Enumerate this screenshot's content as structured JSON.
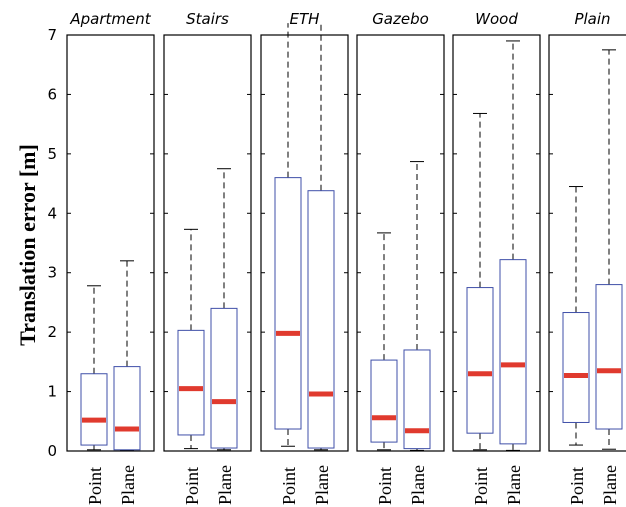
{
  "chart_data": {
    "type": "box",
    "ylabel": "Translation error [m]",
    "ylim": [
      0,
      7
    ],
    "yticks": [
      0,
      1,
      2,
      3,
      4,
      5,
      6,
      7
    ],
    "categories": [
      "Point",
      "Plane"
    ],
    "colors": {
      "box": "#3f4fa8",
      "median": "#e03a2e",
      "whisker": "#000000",
      "frame": "#000000"
    },
    "panels": [
      {
        "title": "Apartment",
        "boxes": [
          {
            "label": "Point",
            "whisker_low": 0.02,
            "q1": 0.1,
            "median": 0.52,
            "q3": 1.3,
            "whisker_high": 2.78
          },
          {
            "label": "Plane",
            "whisker_low": 0.01,
            "q1": 0.02,
            "median": 0.37,
            "q3": 1.42,
            "whisker_high": 3.2
          }
        ]
      },
      {
        "title": "Stairs",
        "boxes": [
          {
            "label": "Point",
            "whisker_low": 0.04,
            "q1": 0.27,
            "median": 1.05,
            "q3": 2.03,
            "whisker_high": 3.73
          },
          {
            "label": "Plane",
            "whisker_low": 0.02,
            "q1": 0.05,
            "median": 0.83,
            "q3": 2.4,
            "whisker_high": 4.75
          }
        ]
      },
      {
        "title": "ETH",
        "boxes": [
          {
            "label": "Point",
            "whisker_low": 0.08,
            "q1": 0.37,
            "median": 1.98,
            "q3": 4.6,
            "whisker_high": 7.2
          },
          {
            "label": "Plane",
            "whisker_low": 0.02,
            "q1": 0.05,
            "median": 0.96,
            "q3": 4.38,
            "whisker_high": 7.2
          }
        ]
      },
      {
        "title": "Gazebo",
        "boxes": [
          {
            "label": "Point",
            "whisker_low": 0.02,
            "q1": 0.15,
            "median": 0.56,
            "q3": 1.53,
            "whisker_high": 3.67
          },
          {
            "label": "Plane",
            "whisker_low": 0.01,
            "q1": 0.04,
            "median": 0.34,
            "q3": 1.7,
            "whisker_high": 4.87
          }
        ]
      },
      {
        "title": "Wood",
        "boxes": [
          {
            "label": "Point",
            "whisker_low": 0.02,
            "q1": 0.3,
            "median": 1.3,
            "q3": 2.75,
            "whisker_high": 5.68
          },
          {
            "label": "Plane",
            "whisker_low": 0.01,
            "q1": 0.12,
            "median": 1.45,
            "q3": 3.22,
            "whisker_high": 6.9
          }
        ]
      },
      {
        "title": "Plain",
        "boxes": [
          {
            "label": "Point",
            "whisker_low": 0.1,
            "q1": 0.48,
            "median": 1.27,
            "q3": 2.33,
            "whisker_high": 4.45
          },
          {
            "label": "Plane",
            "whisker_low": 0.03,
            "q1": 0.37,
            "median": 1.35,
            "q3": 2.8,
            "whisker_high": 6.75
          }
        ]
      }
    ]
  }
}
